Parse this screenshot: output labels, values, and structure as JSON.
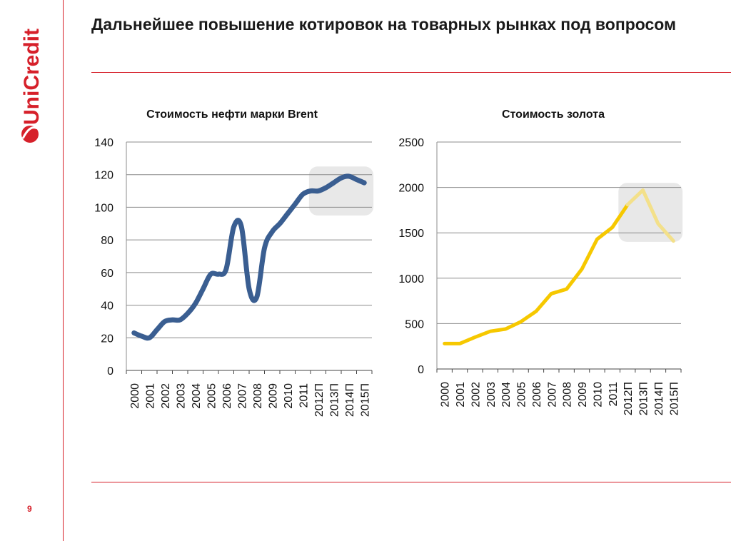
{
  "header": {
    "title": "Дальнейшее повышение котировок на товарных рынках под вопросом"
  },
  "brand": {
    "logo_text": "UniCredit",
    "color": "#d6202a"
  },
  "footer": {
    "page_number": "9"
  },
  "colors": {
    "oil_line": "#3a5e91",
    "gold_line": "#f6c800",
    "gold_forecast": "#f3e08a",
    "highlight": "#e8e8e8",
    "grid": "#8c8c8c",
    "accent_rule": "#d6202a"
  },
  "chart_data": [
    {
      "type": "line",
      "title": "Стоимость нефти марки Brent",
      "categories": [
        "2000",
        "2001",
        "2002",
        "2003",
        "2004",
        "2005",
        "2006",
        "2007",
        "2008",
        "2009",
        "2010",
        "2011",
        "2012П",
        "2013П",
        "2014П",
        "2015П"
      ],
      "x": [
        2000,
        2000.5,
        2001,
        2001.5,
        2002,
        2002.5,
        2003,
        2003.5,
        2004,
        2004.5,
        2005,
        2005.5,
        2006,
        2006.5,
        2007,
        2007.5,
        2008,
        2008.5,
        2009,
        2009.5,
        2010,
        2010.5,
        2011,
        2011.5,
        2012,
        2012.5,
        2013,
        2013.5,
        2014,
        2014.5,
        2015
      ],
      "series": [
        {
          "values": [
            23,
            21,
            20,
            25,
            30,
            31,
            31,
            35,
            41,
            50,
            59,
            59,
            62,
            88,
            88,
            50,
            45,
            75,
            85,
            90,
            96,
            102,
            108,
            110,
            110,
            112,
            115,
            118,
            119,
            117,
            115
          ]
        }
      ],
      "ylim": [
        0,
        140
      ],
      "yticks": [
        "0",
        "20",
        "40",
        "60",
        "80",
        "100",
        "120",
        "140"
      ],
      "grid": true,
      "highlight_range": [
        "2012П",
        "2015П"
      ]
    },
    {
      "type": "line",
      "title": "Стоимость золота",
      "categories": [
        "2000",
        "2001",
        "2002",
        "2003",
        "2004",
        "2005",
        "2006",
        "2007",
        "2008",
        "2009",
        "2010",
        "2011",
        "2012П",
        "2013П",
        "2014П",
        "2015П"
      ],
      "series": [
        {
          "values": [
            280,
            280,
            350,
            415,
            440,
            520,
            635,
            830,
            880,
            1100,
            1430,
            1560,
            1810,
            1970,
            1600,
            1410
          ]
        }
      ],
      "forecast_from": "2012П",
      "ylim": [
        0,
        2500
      ],
      "yticks": [
        "0",
        "500",
        "1000",
        "1500",
        "2000",
        "2500"
      ],
      "grid": true,
      "highlight_range": [
        "2012П",
        "2015П"
      ]
    }
  ]
}
